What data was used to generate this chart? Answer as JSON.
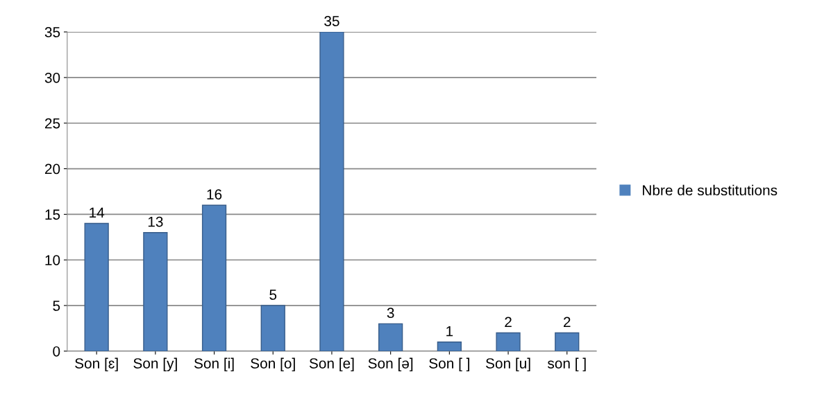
{
  "chart_data": {
    "type": "bar",
    "categories": [
      "Son [ɛ]",
      "Son [y]",
      "Son [i]",
      "Son [o]",
      "Son [e]",
      "Son [ə]",
      "Son [ ]",
      "Son [u]",
      "son [ ]"
    ],
    "series": [
      {
        "name": "Nbre de substitutions",
        "color": "#4f81bd",
        "values": [
          14,
          13,
          16,
          5,
          35,
          3,
          1,
          2,
          2
        ]
      }
    ],
    "ylim": [
      0,
      35
    ],
    "yticks": [
      0,
      5,
      10,
      15,
      20,
      25,
      30,
      35
    ],
    "grid": "y",
    "legend": "right",
    "data_labels": true
  }
}
